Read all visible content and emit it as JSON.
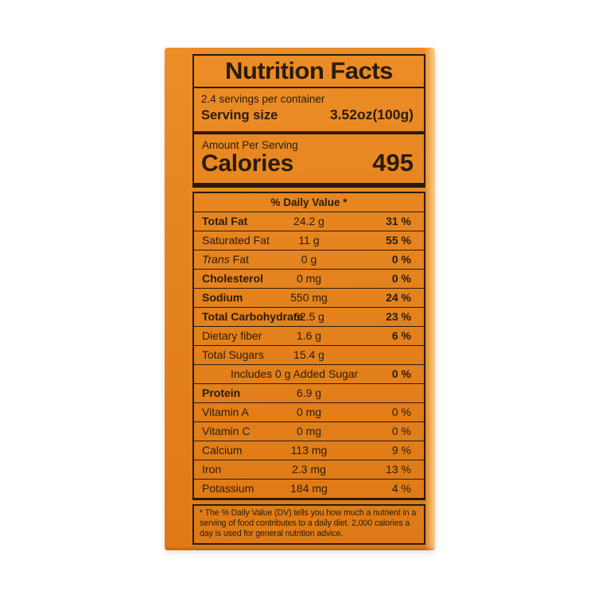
{
  "photo": {
    "backdrop_color": "#FFFFFF"
  },
  "package": {
    "color": "#E5831E",
    "highlight_color": "#F6AC55",
    "ink_color": "#2A1B09"
  },
  "label": {
    "title": "Nutrition Facts",
    "servings_per_container": "2.4 servings per container",
    "serving_size": {
      "label": "Serving size",
      "value": "3.52oz(100g)"
    },
    "calories": {
      "header": "Amount Per Serving",
      "label": "Calories",
      "value": "495"
    },
    "daily_value_header": "% Daily Value *",
    "rows": [
      {
        "name": "Total Fat",
        "amount": "24.2 g",
        "dv": "31 %"
      },
      {
        "name": "Saturated Fat",
        "amount": "11 g",
        "dv": "55 %"
      },
      {
        "name_italic": "Trans",
        "name_rest": " Fat",
        "amount": "0 g",
        "dv": "0 %"
      },
      {
        "name": "Cholesterol",
        "amount": "0 mg",
        "dv": "0 %"
      },
      {
        "name": "Sodium",
        "amount": "550 mg",
        "dv": "24 %"
      },
      {
        "name": "Total Carbohydrate",
        "amount": "62.5 g",
        "dv": "23 %"
      },
      {
        "name": "Dietary fiber",
        "amount": "1.6 g",
        "dv": "6 %"
      },
      {
        "name": "Total Sugars",
        "amount": "15.4 g",
        "dv": ""
      },
      {
        "name": "Includes 0 g Added Sugar",
        "amount": "",
        "dv": "0 %"
      },
      {
        "name": "Protein",
        "amount": "6.9 g",
        "dv": ""
      },
      {
        "name": "Vitamin A",
        "amount": "0 mg",
        "dv": "0 %"
      },
      {
        "name": "Vitamin C",
        "amount": "0 mg",
        "dv": "0 %"
      },
      {
        "name": "Calcium",
        "amount": "113 mg",
        "dv": "9 %"
      },
      {
        "name": "Iron",
        "amount": "2.3 mg",
        "dv": "13 %"
      },
      {
        "name": "Potassium",
        "amount": "184 mg",
        "dv": "4 %"
      }
    ],
    "footnote": "* The % Daily Value (DV) tells you how much a nutrient in a serving of food contributes to a daily diet. 2,000 calories a day is used for general nutrition advice."
  }
}
